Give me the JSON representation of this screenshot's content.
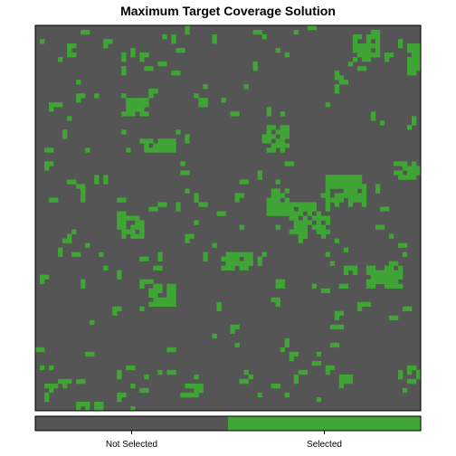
{
  "chart_data": {
    "type": "heatmap",
    "title": "Maximum Target Coverage Solution",
    "xlabel": "",
    "ylabel": "",
    "grid": false,
    "legend_position": "bottom",
    "categories": [
      "Not Selected",
      "Selected"
    ],
    "colors": {
      "Not Selected": "#555555",
      "Selected": "#3fa535"
    },
    "cell_grid_size": [
      85,
      85
    ],
    "selected_regions": [
      {
        "x0": 9,
        "y0": 83,
        "x1": 14,
        "y1": 86
      },
      {
        "x0": 32,
        "y0": 79,
        "x1": 36,
        "y1": 81
      },
      {
        "x0": 80,
        "y0": 85,
        "x1": 84,
        "y1": 88
      },
      {
        "x0": 25,
        "y0": 57,
        "x1": 30,
        "y1": 61
      },
      {
        "x0": 41,
        "y0": 50,
        "x1": 47,
        "y1": 53
      },
      {
        "x0": 18,
        "y0": 42,
        "x1": 23,
        "y1": 46
      },
      {
        "x0": 73,
        "y0": 53,
        "x1": 80,
        "y1": 57
      },
      {
        "x0": 26,
        "y0": 25,
        "x1": 30,
        "y1": 27
      },
      {
        "x0": 51,
        "y0": 36,
        "x1": 55,
        "y1": 41
      },
      {
        "x0": 56,
        "y0": 39,
        "x1": 64,
        "y1": 45
      },
      {
        "x0": 64,
        "y0": 33,
        "x1": 72,
        "y1": 39
      },
      {
        "x0": 51,
        "y0": 22,
        "x1": 55,
        "y1": 27
      },
      {
        "x0": 20,
        "y0": 16,
        "x1": 24,
        "y1": 19
      },
      {
        "x0": 82,
        "y0": 4,
        "x1": 85,
        "y1": 10
      },
      {
        "x0": 70,
        "y0": 2,
        "x1": 75,
        "y1": 7
      },
      {
        "x0": 79,
        "y0": 30,
        "x1": 84,
        "y1": 33
      }
    ]
  }
}
